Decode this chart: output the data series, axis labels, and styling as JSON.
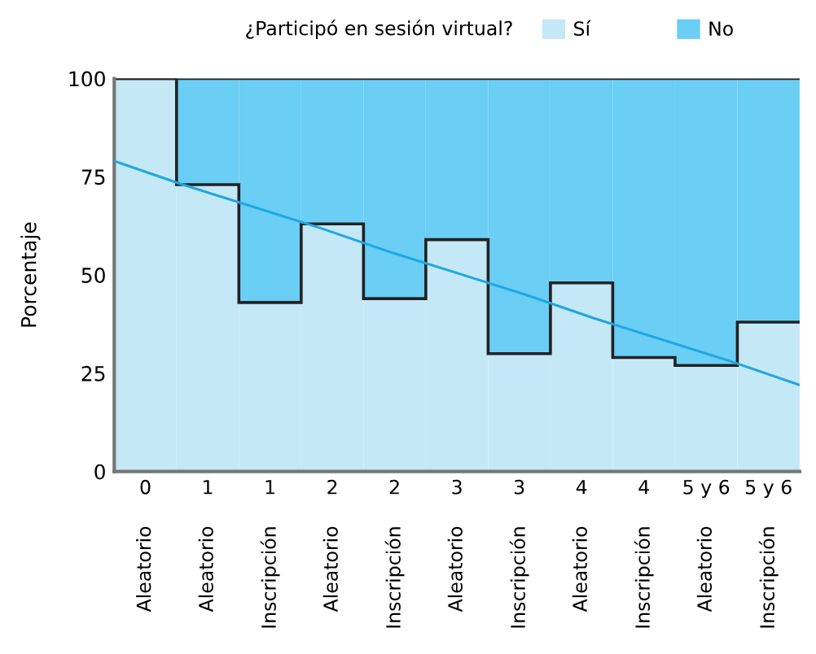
{
  "chart_data": {
    "type": "bar",
    "stacked": true,
    "legend": "top",
    "legend_title": "¿Participó en sesión virtual?",
    "ylabel": "Porcentaje",
    "categories": [
      "0\nAleatorio",
      "1\nAleatorio",
      "1\nInscripción",
      "2\nAleatorio",
      "2\nInscripción",
      "3\nAleatorio",
      "3\nInscripción",
      "4\nAleatorio",
      "4\nInscripción",
      "5 y 6\nAleatorio",
      "5 y 6\nInscripción"
    ],
    "ylim": [
      0,
      100
    ],
    "yticks": [
      0,
      25,
      50,
      75,
      100
    ],
    "grid": false,
    "series": [
      {
        "name": "Sí",
        "color": "#c5e8f7",
        "values": [
          100,
          73,
          43,
          63,
          44,
          59,
          30,
          48,
          29,
          27,
          38
        ]
      },
      {
        "name": "No",
        "color": "#6acef5",
        "values": [
          0,
          27,
          57,
          37,
          56,
          41,
          70,
          52,
          71,
          73,
          62
        ]
      },
      {
        "type": "line",
        "color": "#1ea8e0",
        "values": [
          79,
          73,
          67.5,
          62,
          56,
          50.5,
          45,
          39,
          33.5,
          28,
          22
        ]
      }
    ]
  }
}
